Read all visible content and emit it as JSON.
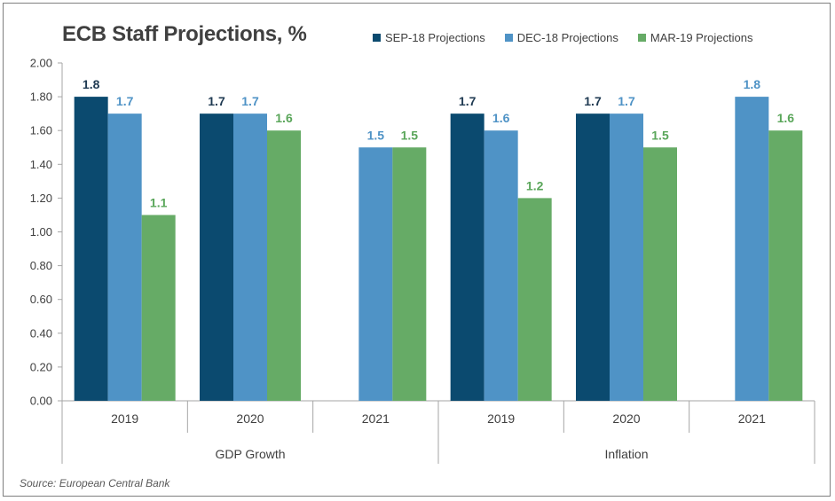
{
  "chart_data": {
    "type": "bar",
    "title": "ECB Staff Projections, %",
    "source": "Source: European Central Bank",
    "groups": [
      {
        "name": "GDP Growth",
        "categories": [
          "2019",
          "2020",
          "2021"
        ]
      },
      {
        "name": "Inflation",
        "categories": [
          "2019",
          "2020",
          "2021"
        ]
      }
    ],
    "categories": [
      "2019",
      "2020",
      "2021",
      "2019",
      "2020",
      "2021"
    ],
    "series": [
      {
        "name": "SEP-18 Projections",
        "color": "#0b4a6f",
        "values": [
          1.8,
          1.7,
          null,
          1.7,
          1.7,
          null
        ],
        "labels": [
          "1.8",
          "1.7",
          "",
          "1.7",
          "1.7",
          ""
        ]
      },
      {
        "name": "DEC-18 Projections",
        "color": "#4f93c6",
        "values": [
          1.7,
          1.7,
          1.5,
          1.6,
          1.7,
          1.8
        ],
        "labels": [
          "1.7",
          "1.7",
          "1.5",
          "1.6",
          "1.7",
          "1.8"
        ]
      },
      {
        "name": "MAR-19 Projections",
        "color": "#66ab66",
        "values": [
          1.1,
          1.6,
          1.5,
          1.2,
          1.5,
          1.6
        ],
        "labels": [
          "1.1",
          "1.6",
          "1.5",
          "1.2",
          "1.5",
          "1.6"
        ]
      }
    ],
    "label_colors": [
      "#1f3a52",
      "#4f93c6",
      "#5aa65a"
    ],
    "yticks": [
      "0.00",
      "0.20",
      "0.40",
      "0.60",
      "0.80",
      "1.00",
      "1.20",
      "1.40",
      "1.60",
      "1.80",
      "2.00"
    ],
    "ylim": [
      0,
      2
    ],
    "grid": false,
    "legend_position": "top-right"
  }
}
